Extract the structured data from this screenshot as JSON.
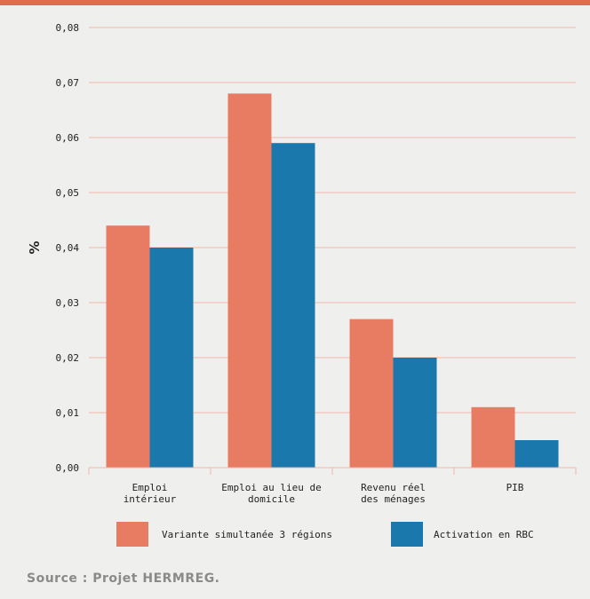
{
  "title_fragment": "(%)",
  "source": "Source : Projet HERMREG.",
  "colors": {
    "series_1": "#e87c62",
    "series_2": "#1b78ad",
    "grid": "#f0b7aa",
    "accent": "#e36a52"
  },
  "chart_data": {
    "type": "bar",
    "title": "",
    "xlabel": "",
    "ylabel": "%",
    "ylim": [
      0,
      0.08
    ],
    "yticks": [
      0,
      0.01,
      0.02,
      0.03,
      0.04,
      0.05,
      0.06,
      0.07,
      0.08
    ],
    "ytick_labels": [
      "0,00",
      "0,01",
      "0,02",
      "0,03",
      "0,04",
      "0,05",
      "0,06",
      "0,07",
      "0,08"
    ],
    "categories": [
      [
        "Emploi",
        "intérieur"
      ],
      [
        "Emploi au lieu de",
        "domicile"
      ],
      [
        "Revenu réel",
        "des ménages"
      ],
      [
        "PIB"
      ]
    ],
    "series": [
      {
        "name": "Variante simultanée 3 régions",
        "values": [
          0.044,
          0.068,
          0.027,
          0.011
        ]
      },
      {
        "name": "Activation en RBC",
        "values": [
          0.04,
          0.059,
          0.02,
          0.005
        ]
      }
    ],
    "grid": true,
    "legend": "bottom"
  }
}
